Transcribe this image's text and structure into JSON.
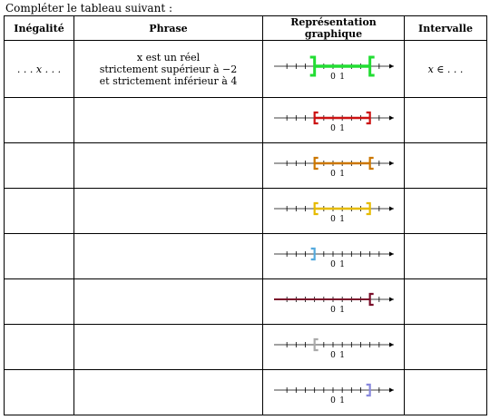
{
  "instruction": "Compléter le tableau suivant :",
  "headers": [
    "Inégalité",
    "Phrase",
    "Représentation graphique",
    "Intervalle"
  ],
  "number_line": {
    "tick_labels": [
      "0",
      "1"
    ],
    "min": -6,
    "max": 6
  },
  "rows": [
    {
      "inequality": ". . . x . . .",
      "phrase": [
        "x est un réel",
        "strictement supérieur à −2",
        "et strictement inférieur à 4"
      ],
      "interval": "x ∈ . . .",
      "color": "#22dd33",
      "segment": [
        -2,
        4
      ],
      "left_bracket": "]",
      "right_bracket": "[",
      "big": true
    },
    {
      "inequality": "",
      "phrase": [],
      "interval": "",
      "color": "#cc1111",
      "segment": [
        -2,
        4
      ],
      "left_bracket": "[",
      "right_bracket": "]",
      "big": false
    },
    {
      "inequality": "",
      "phrase": [],
      "interval": "",
      "color": "#cc7700",
      "segment": [
        -2,
        4
      ],
      "left_bracket": "[",
      "right_bracket": "[",
      "big": false
    },
    {
      "inequality": "",
      "phrase": [],
      "interval": "",
      "color": "#e6bb00",
      "segment": [
        -2,
        4
      ],
      "left_bracket": "[",
      "right_bracket": "]",
      "big": false
    },
    {
      "inequality": "",
      "phrase": [],
      "interval": "",
      "color": "#55aadd",
      "segment": null,
      "left_bracket": "]",
      "right_bracket": null,
      "big": false
    },
    {
      "inequality": "",
      "phrase": [],
      "interval": "",
      "color": "#7a0f2a",
      "segment": null,
      "left_bracket": null,
      "right_bracket": "[",
      "big": false
    },
    {
      "inequality": "",
      "phrase": [],
      "interval": "",
      "color": "#aaaaaa",
      "segment": null,
      "left_bracket": "[",
      "right_bracket": null,
      "big": false
    },
    {
      "inequality": "",
      "phrase": [],
      "interval": "",
      "color": "#8888dd",
      "segment": null,
      "left_bracket": null,
      "right_bracket": "]",
      "big": false
    }
  ]
}
